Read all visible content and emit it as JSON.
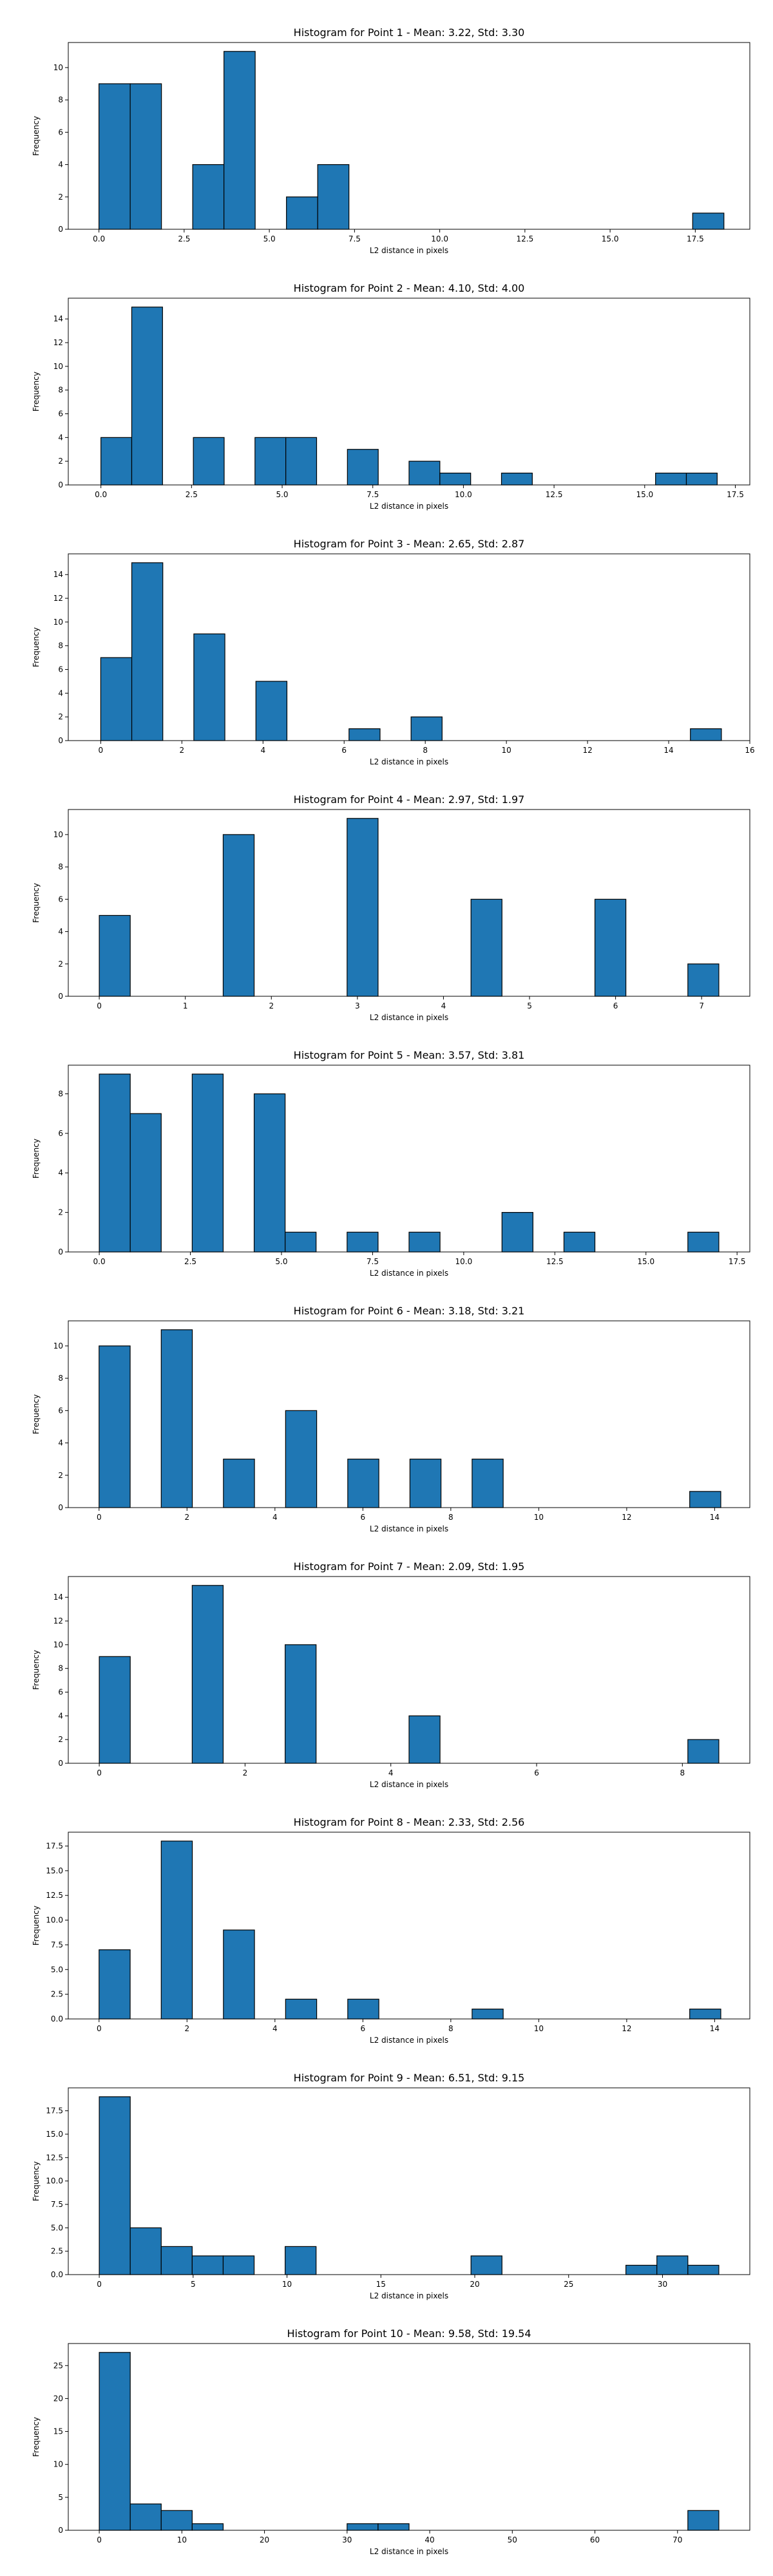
{
  "chart_data": [
    {
      "type": "bar",
      "title": "Histogram for Point 1 - Mean: 3.22, Std: 3.30",
      "xlabel": "L2 distance in pixels",
      "ylabel": "Frequency",
      "xlim": [
        -0.9,
        19.1
      ],
      "ylim": [
        0,
        11.55
      ],
      "xticks": [
        0.0,
        2.5,
        5.0,
        7.5,
        10.0,
        12.5,
        15.0,
        17.5
      ],
      "xtick_labels": [
        "0.0",
        "2.5",
        "5.0",
        "7.5",
        "10.0",
        "12.5",
        "15.0",
        "17.5"
      ],
      "yticks": [
        0,
        2,
        4,
        6,
        8,
        10
      ],
      "ytick_labels": [
        "0",
        "2",
        "4",
        "6",
        "8",
        "10"
      ],
      "bin_start": 0.0,
      "bin_width": 0.917,
      "counts": [
        9,
        9,
        0,
        4,
        11,
        0,
        2,
        4,
        0,
        0,
        0,
        0,
        0,
        0,
        0,
        0,
        0,
        0,
        0,
        1
      ]
    },
    {
      "type": "bar",
      "title": "Histogram for Point 2 - Mean: 4.10, Std: 4.00",
      "xlabel": "L2 distance in pixels",
      "ylabel": "Frequency",
      "xlim": [
        -0.9,
        17.9
      ],
      "ylim": [
        0,
        15.75
      ],
      "xticks": [
        0.0,
        2.5,
        5.0,
        7.5,
        10.0,
        12.5,
        15.0,
        17.5
      ],
      "xtick_labels": [
        "0.0",
        "2.5",
        "5.0",
        "7.5",
        "10.0",
        "12.5",
        "15.0",
        "17.5"
      ],
      "yticks": [
        0,
        2,
        4,
        6,
        8,
        10,
        12,
        14
      ],
      "ytick_labels": [
        "0",
        "2",
        "4",
        "6",
        "8",
        "10",
        "12",
        "14"
      ],
      "bin_start": 0.0,
      "bin_width": 0.85,
      "counts": [
        4,
        15,
        0,
        4,
        0,
        4,
        4,
        0,
        3,
        0,
        2,
        1,
        0,
        1,
        0,
        0,
        0,
        0,
        1,
        1
      ]
    },
    {
      "type": "bar",
      "title": "Histogram for Point 3 - Mean: 2.65, Std: 2.87",
      "xlabel": "L2 distance in pixels",
      "ylabel": "Frequency",
      "xlim": [
        -0.8,
        16.0
      ],
      "ylim": [
        0,
        15.75
      ],
      "xticks": [
        0,
        2,
        4,
        6,
        8,
        10,
        12,
        14,
        16
      ],
      "xtick_labels": [
        "0",
        "2",
        "4",
        "6",
        "8",
        "10",
        "12",
        "14",
        "16"
      ],
      "yticks": [
        0,
        2,
        4,
        6,
        8,
        10,
        12,
        14
      ],
      "ytick_labels": [
        "0",
        "2",
        "4",
        "6",
        "8",
        "10",
        "12",
        "14"
      ],
      "bin_start": 0.0,
      "bin_width": 0.765,
      "counts": [
        7,
        15,
        0,
        9,
        0,
        5,
        0,
        0,
        1,
        0,
        2,
        0,
        0,
        0,
        0,
        0,
        0,
        0,
        0,
        1
      ]
    },
    {
      "type": "bar",
      "title": "Histogram for Point 4 - Mean: 2.97, Std: 1.97",
      "xlabel": "L2 distance in pixels",
      "ylabel": "Frequency",
      "xlim": [
        -0.36,
        7.56
      ],
      "ylim": [
        0,
        11.55
      ],
      "xticks": [
        0,
        1,
        2,
        3,
        4,
        5,
        6,
        7
      ],
      "xtick_labels": [
        "0",
        "1",
        "2",
        "3",
        "4",
        "5",
        "6",
        "7"
      ],
      "yticks": [
        0,
        2,
        4,
        6,
        8,
        10
      ],
      "ytick_labels": [
        "0",
        "2",
        "4",
        "6",
        "8",
        "10"
      ],
      "bin_start": 0.0,
      "bin_width": 0.36,
      "counts": [
        5,
        0,
        0,
        0,
        10,
        0,
        0,
        0,
        11,
        0,
        0,
        0,
        6,
        0,
        0,
        0,
        6,
        0,
        0,
        2
      ]
    },
    {
      "type": "bar",
      "title": "Histogram for Point 5 - Mean: 3.57, Std: 3.81",
      "xlabel": "L2 distance in pixels",
      "ylabel": "Frequency",
      "xlim": [
        -0.85,
        17.85
      ],
      "ylim": [
        0,
        9.45
      ],
      "xticks": [
        0.0,
        2.5,
        5.0,
        7.5,
        10.0,
        12.5,
        15.0,
        17.5
      ],
      "xtick_labels": [
        "0.0",
        "2.5",
        "5.0",
        "7.5",
        "10.0",
        "12.5",
        "15.0",
        "17.5"
      ],
      "yticks": [
        0,
        2,
        4,
        6,
        8
      ],
      "ytick_labels": [
        "0",
        "2",
        "4",
        "6",
        "8"
      ],
      "bin_start": 0.0,
      "bin_width": 0.85,
      "counts": [
        9,
        7,
        0,
        9,
        0,
        8,
        1,
        0,
        1,
        0,
        1,
        0,
        0,
        2,
        0,
        1,
        0,
        0,
        0,
        1
      ]
    },
    {
      "type": "bar",
      "title": "Histogram for Point 6 - Mean: 3.18, Std: 3.21",
      "xlabel": "L2 distance in pixels",
      "ylabel": "Frequency",
      "xlim": [
        -0.7,
        14.8
      ],
      "ylim": [
        0,
        11.55
      ],
      "xticks": [
        0,
        2,
        4,
        6,
        8,
        10,
        12,
        14
      ],
      "xtick_labels": [
        "0",
        "2",
        "4",
        "6",
        "8",
        "10",
        "12",
        "14"
      ],
      "yticks": [
        0,
        2,
        4,
        6,
        8,
        10
      ],
      "ytick_labels": [
        "0",
        "2",
        "4",
        "6",
        "8",
        "10"
      ],
      "bin_start": 0.0,
      "bin_width": 0.707,
      "counts": [
        10,
        0,
        11,
        0,
        3,
        0,
        6,
        0,
        3,
        0,
        3,
        0,
        3,
        0,
        0,
        0,
        0,
        0,
        0,
        1
      ]
    },
    {
      "type": "bar",
      "title": "Histogram for Point 7 - Mean: 2.09, Std: 1.95",
      "xlabel": "L2 distance in pixels",
      "ylabel": "Frequency",
      "xlim": [
        -0.425,
        8.925
      ],
      "ylim": [
        0,
        15.75
      ],
      "xticks": [
        0,
        2,
        4,
        6,
        8
      ],
      "xtick_labels": [
        "0",
        "2",
        "4",
        "6",
        "8"
      ],
      "yticks": [
        0,
        2,
        4,
        6,
        8,
        10,
        12,
        14
      ],
      "ytick_labels": [
        "0",
        "2",
        "4",
        "6",
        "8",
        "10",
        "12",
        "14"
      ],
      "bin_start": 0.0,
      "bin_width": 0.425,
      "counts": [
        9,
        0,
        0,
        15,
        0,
        0,
        10,
        0,
        0,
        0,
        4,
        0,
        0,
        0,
        0,
        0,
        0,
        0,
        0,
        2
      ]
    },
    {
      "type": "bar",
      "title": "Histogram for Point 8 - Mean: 2.33, Std: 2.56",
      "xlabel": "L2 distance in pixels",
      "ylabel": "Frequency",
      "xlim": [
        -0.7,
        14.8
      ],
      "ylim": [
        0,
        18.9
      ],
      "xticks": [
        0,
        2,
        4,
        6,
        8,
        10,
        12,
        14
      ],
      "xtick_labels": [
        "0",
        "2",
        "4",
        "6",
        "8",
        "10",
        "12",
        "14"
      ],
      "yticks": [
        0.0,
        2.5,
        5.0,
        7.5,
        10.0,
        12.5,
        15.0,
        17.5
      ],
      "ytick_labels": [
        "0.0",
        "2.5",
        "5.0",
        "7.5",
        "10.0",
        "12.5",
        "15.0",
        "17.5"
      ],
      "bin_start": 0.0,
      "bin_width": 0.707,
      "counts": [
        7,
        0,
        18,
        0,
        9,
        0,
        2,
        0,
        2,
        0,
        0,
        0,
        1,
        0,
        0,
        0,
        0,
        0,
        0,
        1
      ]
    },
    {
      "type": "bar",
      "title": "Histogram for Point 9 - Mean: 6.51, Std: 9.15",
      "xlabel": "L2 distance in pixels",
      "ylabel": "Frequency",
      "xlim": [
        -1.65,
        34.65
      ],
      "ylim": [
        0,
        19.95
      ],
      "xticks": [
        0,
        5,
        10,
        15,
        20,
        25,
        30
      ],
      "xtick_labels": [
        "0",
        "5",
        "10",
        "15",
        "20",
        "25",
        "30"
      ],
      "yticks": [
        0.0,
        2.5,
        5.0,
        7.5,
        10.0,
        12.5,
        15.0,
        17.5
      ],
      "ytick_labels": [
        "0.0",
        "2.5",
        "5.0",
        "7.5",
        "10.0",
        "12.5",
        "15.0",
        "17.5"
      ],
      "bin_start": 0.0,
      "bin_width": 1.65,
      "counts": [
        19,
        5,
        3,
        2,
        2,
        0,
        3,
        0,
        0,
        0,
        0,
        0,
        2,
        0,
        0,
        0,
        0,
        1,
        2,
        1
      ]
    },
    {
      "type": "bar",
      "title": "Histogram for Point 10 - Mean: 9.58, Std: 19.54",
      "xlabel": "L2 distance in pixels",
      "ylabel": "Frequency",
      "xlim": [
        -3.75,
        78.75
      ],
      "ylim": [
        0,
        28.35
      ],
      "xticks": [
        0,
        10,
        20,
        30,
        40,
        50,
        60,
        70
      ],
      "xtick_labels": [
        "0",
        "10",
        "20",
        "30",
        "40",
        "50",
        "60",
        "70"
      ],
      "yticks": [
        0,
        5,
        10,
        15,
        20,
        25
      ],
      "ytick_labels": [
        "0",
        "5",
        "10",
        "15",
        "20",
        "25"
      ],
      "bin_start": 0.0,
      "bin_width": 3.75,
      "counts": [
        27,
        4,
        3,
        1,
        0,
        0,
        0,
        0,
        1,
        1,
        0,
        0,
        0,
        0,
        0,
        0,
        0,
        0,
        0,
        3
      ]
    }
  ]
}
